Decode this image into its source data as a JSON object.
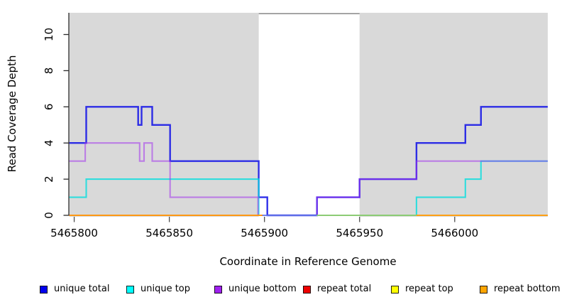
{
  "chart_data": {
    "type": "line",
    "title": "",
    "xlabel": "Coordinate in Reference Genome",
    "ylabel": "Read Coverage Depth",
    "xlim": [
      5465797.4,
      5466048.9
    ],
    "ylim": [
      0,
      11.2
    ],
    "x_ticks": [
      5465800,
      5465850,
      5465900,
      5465950,
      5466000
    ],
    "y_ticks": [
      0,
      2,
      4,
      6,
      8,
      10
    ],
    "grid": false,
    "legend_position": "bottom",
    "shaded_regions": [
      {
        "from": 5465797.4,
        "to": 5465897.0,
        "color": "#d9d9d9"
      },
      {
        "from": 5465950.0,
        "to": 5466048.9,
        "color": "#d9d9d9"
      }
    ],
    "uncovered_gap": {
      "from": 5465897.0,
      "to": 5465950.0,
      "top_border_color": "#7d7d7d"
    },
    "series": [
      {
        "name": "unique total",
        "color": "#1414e6",
        "opacity": 0.88,
        "width": 2.4,
        "segments": [
          [
            [
              5465797.4,
              4
            ],
            [
              5465806.3,
              6
            ],
            [
              5465833.6,
              5
            ],
            [
              5465835.4,
              6
            ],
            [
              5465841.0,
              5
            ],
            [
              5465850.4,
              3
            ],
            [
              5465897.0,
              1
            ],
            [
              5465901.5,
              0
            ],
            [
              5465927.6,
              1
            ],
            [
              5465950.0,
              2
            ],
            [
              5465979.9,
              4
            ],
            [
              5466005.6,
              5
            ],
            [
              5466013.8,
              6
            ],
            [
              5466048.9,
              6
            ]
          ]
        ]
      },
      {
        "name": "unique top",
        "color": "#00dede",
        "opacity": 0.78,
        "width": 2.1,
        "segments": [
          [
            [
              5465797.4,
              1
            ],
            [
              5465806.3,
              2
            ],
            [
              5465897.0,
              0
            ],
            [
              5465979.9,
              1
            ],
            [
              5466005.6,
              2
            ],
            [
              5466013.8,
              3
            ],
            [
              5466048.9,
              3
            ]
          ]
        ]
      },
      {
        "name": "unique bottom",
        "color": "#a332ee",
        "opacity": 0.55,
        "width": 2.1,
        "segments": [
          [
            [
              5465797.4,
              3
            ],
            [
              5465805.8,
              4
            ],
            [
              5465834.4,
              3
            ],
            [
              5465836.7,
              4
            ],
            [
              5465841.0,
              3
            ],
            [
              5465850.4,
              1
            ],
            [
              5465896.6,
              0
            ],
            [
              5465927.6,
              1
            ],
            [
              5465950.0,
              2
            ],
            [
              5465979.9,
              3
            ],
            [
              5466048.9,
              3
            ]
          ]
        ]
      },
      {
        "name": "repeat total",
        "color": "#cc0000",
        "opacity": 1.0,
        "width": 1.8,
        "segments": [
          [
            [
              5465797.4,
              0
            ],
            [
              5465898.9,
              0
            ]
          ],
          [
            [
              5465979.9,
              0
            ],
            [
              5466048.9,
              0
            ]
          ]
        ]
      },
      {
        "name": "repeat top",
        "color": "#f0f000",
        "opacity": 0.85,
        "width": 1.8,
        "segments": [
          [
            [
              5465927.6,
              0
            ],
            [
              5466048.9,
              0
            ]
          ]
        ]
      },
      {
        "name": "repeat bottom",
        "color": "#ff9e14",
        "opacity": 0.95,
        "width": 2.0,
        "segments": [
          [
            [
              5465797.4,
              0
            ],
            [
              5465898.9,
              0
            ]
          ],
          [
            [
              5465979.9,
              0
            ],
            [
              5466048.9,
              0
            ]
          ]
        ]
      }
    ],
    "zero_line_blend_overlay": {
      "from": 5465927.6,
      "to": 5465979.9,
      "depth": 0,
      "color": "#82c382",
      "width": 1.8,
      "opacity": 0.9
    }
  },
  "legend": {
    "items": [
      {
        "label": "unique total",
        "swatch_color": "#0000ee"
      },
      {
        "label": "unique top",
        "swatch_color": "#00ffff"
      },
      {
        "label": "unique bottom",
        "swatch_color": "#a020f0"
      },
      {
        "label": "repeat total",
        "swatch_color": "#ee0000"
      },
      {
        "label": "repeat top",
        "swatch_color": "#ffff00"
      },
      {
        "label": "repeat bottom",
        "swatch_color": "#ffa500"
      }
    ]
  },
  "colors": {
    "background": "#ffffff",
    "shaded_region": "#d9d9d9",
    "axis": "#2b2b2b",
    "x_tick": "#4d4d4d",
    "gap_top_border": "#7d7d7d"
  }
}
